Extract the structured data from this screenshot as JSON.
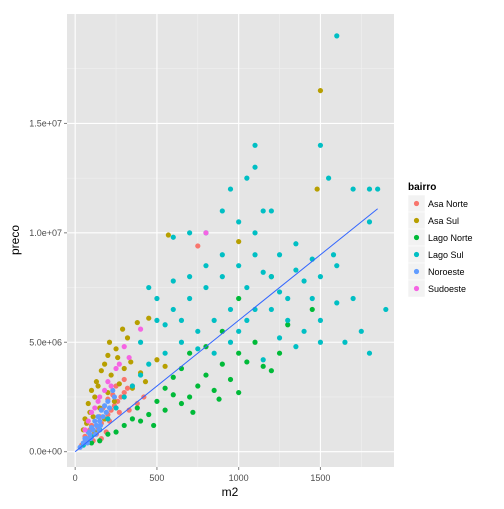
{
  "chart_data": {
    "type": "scatter",
    "title": "",
    "xlabel": "m2",
    "ylabel": "preco",
    "xlim": [
      -50,
      1950
    ],
    "ylim": [
      -700000,
      20000000
    ],
    "x_ticks": [
      {
        "value": 0,
        "label": "0"
      },
      {
        "value": 500,
        "label": "500"
      },
      {
        "value": 1000,
        "label": "1000"
      },
      {
        "value": 1500,
        "label": "1500"
      }
    ],
    "y_ticks": [
      {
        "value": 0,
        "label": "0.0e+00"
      },
      {
        "value": 5000000,
        "label": "5.0e+06"
      },
      {
        "value": 10000000,
        "label": "1.0e+07"
      },
      {
        "value": 15000000,
        "label": "1.5e+07"
      }
    ],
    "grid": true,
    "legend": {
      "title": "bairro",
      "position": "right",
      "entries": [
        {
          "label": "Asa Norte",
          "color": "#F8766D"
        },
        {
          "label": "Asa Sul",
          "color": "#B79F00"
        },
        {
          "label": "Lago Norte",
          "color": "#00BA38"
        },
        {
          "label": "Lago Sul",
          "color": "#00BFC4"
        },
        {
          "label": "Noroeste",
          "color": "#619CFF"
        },
        {
          "label": "Sudoeste",
          "color": "#F564E3"
        }
      ]
    },
    "trend_line": {
      "color": "#3366FF",
      "x": [
        0,
        1850
      ],
      "y": [
        0,
        11100000
      ]
    },
    "series": [
      {
        "name": "Asa Norte",
        "color": "#F8766D",
        "points": [
          [
            750,
            9400000
          ],
          [
            40,
            300000
          ],
          [
            60,
            450000
          ],
          [
            80,
            600000
          ],
          [
            100,
            750000
          ],
          [
            120,
            900000
          ],
          [
            140,
            1100000
          ],
          [
            160,
            1300000
          ],
          [
            180,
            1500000
          ],
          [
            200,
            1700000
          ],
          [
            220,
            1900000
          ],
          [
            240,
            2100000
          ],
          [
            260,
            2300000
          ],
          [
            280,
            2500000
          ],
          [
            300,
            2700000
          ],
          [
            320,
            2900000
          ],
          [
            150,
            1600000
          ],
          [
            200,
            2400000
          ],
          [
            250,
            3000000
          ],
          [
            100,
            1200000
          ],
          [
            130,
            800000
          ],
          [
            170,
            2000000
          ],
          [
            210,
            1400000
          ],
          [
            230,
            2600000
          ],
          [
            270,
            1800000
          ],
          [
            190,
            900000
          ],
          [
            90,
            1000000
          ],
          [
            110,
            500000
          ],
          [
            60,
            700000
          ],
          [
            300,
            3300000
          ],
          [
            350,
            3000000
          ],
          [
            380,
            2200000
          ],
          [
            330,
            1900000
          ],
          [
            420,
            2500000
          ],
          [
            160,
            600000
          ]
        ]
      },
      {
        "name": "Asa Sul",
        "color": "#B79F00",
        "points": [
          [
            1500,
            16500000
          ],
          [
            1480,
            12000000
          ],
          [
            1000,
            9600000
          ],
          [
            570,
            9900000
          ],
          [
            450,
            6100000
          ],
          [
            380,
            5900000
          ],
          [
            290,
            5600000
          ],
          [
            250,
            4700000
          ],
          [
            200,
            4400000
          ],
          [
            160,
            3700000
          ],
          [
            130,
            3200000
          ],
          [
            100,
            2800000
          ],
          [
            80,
            2200000
          ],
          [
            60,
            1500000
          ],
          [
            50,
            1000000
          ],
          [
            70,
            1300000
          ],
          [
            90,
            1800000
          ],
          [
            120,
            2500000
          ],
          [
            140,
            3000000
          ],
          [
            180,
            4000000
          ],
          [
            220,
            3500000
          ],
          [
            260,
            4300000
          ],
          [
            300,
            3800000
          ],
          [
            340,
            4100000
          ],
          [
            400,
            3600000
          ],
          [
            150,
            2000000
          ],
          [
            110,
            1600000
          ],
          [
            200,
            2700000
          ],
          [
            240,
            2300000
          ],
          [
            500,
            4200000
          ],
          [
            550,
            3900000
          ],
          [
            350,
            2900000
          ],
          [
            430,
            3200000
          ],
          [
            180,
            1500000
          ],
          [
            120,
            900000
          ],
          [
            270,
            3100000
          ],
          [
            320,
            5200000
          ],
          [
            210,
            5000000
          ]
        ]
      },
      {
        "name": "Lago Norte",
        "color": "#00BA38",
        "points": [
          [
            1000,
            7000000
          ],
          [
            1200,
            8000000
          ],
          [
            900,
            5500000
          ],
          [
            800,
            4800000
          ],
          [
            1100,
            5000000
          ],
          [
            1300,
            5800000
          ],
          [
            1450,
            6500000
          ],
          [
            1200,
            3700000
          ],
          [
            1050,
            4100000
          ],
          [
            950,
            3300000
          ],
          [
            850,
            2800000
          ],
          [
            750,
            3000000
          ],
          [
            700,
            2500000
          ],
          [
            650,
            2200000
          ],
          [
            600,
            2600000
          ],
          [
            550,
            1900000
          ],
          [
            500,
            2300000
          ],
          [
            450,
            1700000
          ],
          [
            400,
            1400000
          ],
          [
            350,
            1500000
          ],
          [
            300,
            1200000
          ],
          [
            250,
            900000
          ],
          [
            200,
            800000
          ],
          [
            150,
            500000
          ],
          [
            100,
            400000
          ],
          [
            700,
            4500000
          ],
          [
            800,
            3500000
          ],
          [
            900,
            4000000
          ],
          [
            1000,
            4500000
          ],
          [
            600,
            3400000
          ],
          [
            1150,
            3900000
          ],
          [
            1000,
            2700000
          ],
          [
            650,
            3800000
          ],
          [
            550,
            2900000
          ],
          [
            1250,
            4500000
          ],
          [
            880,
            2400000
          ],
          [
            480,
            1200000
          ],
          [
            380,
            2000000
          ],
          [
            720,
            1800000
          ]
        ]
      },
      {
        "name": "Lago Sul",
        "color": "#00BFC4",
        "points": [
          [
            1600,
            19000000
          ],
          [
            1800,
            12000000
          ],
          [
            1850,
            12000000
          ],
          [
            1700,
            12000000
          ],
          [
            1550,
            12500000
          ],
          [
            1500,
            14000000
          ],
          [
            1580,
            9000000
          ],
          [
            1800,
            10500000
          ],
          [
            1600,
            8500000
          ],
          [
            1500,
            8000000
          ],
          [
            1400,
            7800000
          ],
          [
            1350,
            9500000
          ],
          [
            1450,
            8800000
          ],
          [
            1250,
            9000000
          ],
          [
            1300,
            7000000
          ],
          [
            1100,
            14000000
          ],
          [
            1100,
            13000000
          ],
          [
            1050,
            12500000
          ],
          [
            1200,
            11000000
          ],
          [
            1150,
            11000000
          ],
          [
            1100,
            10000000
          ],
          [
            1000,
            10500000
          ],
          [
            950,
            12000000
          ],
          [
            900,
            11000000
          ],
          [
            800,
            10000000
          ],
          [
            700,
            10000000
          ],
          [
            600,
            9800000
          ],
          [
            1100,
            9000000
          ],
          [
            1000,
            8500000
          ],
          [
            900,
            8000000
          ],
          [
            800,
            7500000
          ],
          [
            700,
            7000000
          ],
          [
            600,
            6500000
          ],
          [
            500,
            6000000
          ],
          [
            1200,
            8000000
          ],
          [
            1050,
            7500000
          ],
          [
            950,
            6500000
          ],
          [
            850,
            6000000
          ],
          [
            750,
            5500000
          ],
          [
            650,
            5000000
          ],
          [
            550,
            4500000
          ],
          [
            450,
            4000000
          ],
          [
            400,
            3500000
          ],
          [
            350,
            3000000
          ],
          [
            300,
            2500000
          ],
          [
            250,
            2000000
          ],
          [
            200,
            1500000
          ],
          [
            150,
            1000000
          ],
          [
            100,
            700000
          ],
          [
            50,
            300000
          ],
          [
            1300,
            6000000
          ],
          [
            1200,
            6500000
          ],
          [
            1400,
            5500000
          ],
          [
            1500,
            6000000
          ],
          [
            1650,
            5000000
          ],
          [
            1700,
            7000000
          ],
          [
            1750,
            5500000
          ],
          [
            1900,
            6500000
          ],
          [
            900,
            9000000
          ],
          [
            1000,
            5500000
          ],
          [
            1100,
            6500000
          ],
          [
            1250,
            5200000
          ],
          [
            1350,
            4800000
          ],
          [
            1500,
            5000000
          ],
          [
            1800,
            4500000
          ],
          [
            800,
            8500000
          ],
          [
            700,
            8000000
          ],
          [
            1150,
            4200000
          ],
          [
            1050,
            6000000
          ],
          [
            450,
            7500000
          ],
          [
            500,
            7000000
          ],
          [
            600,
            7800000
          ],
          [
            550,
            5800000
          ],
          [
            650,
            6000000
          ],
          [
            750,
            4700000
          ],
          [
            850,
            4500000
          ],
          [
            950,
            5000000
          ],
          [
            400,
            5000000
          ],
          [
            1450,
            7000000
          ],
          [
            1600,
            6800000
          ],
          [
            1350,
            8300000
          ],
          [
            1250,
            7300000
          ],
          [
            1150,
            8200000
          ]
        ]
      },
      {
        "name": "Noroeste",
        "color": "#619CFF",
        "points": [
          [
            30,
            200000
          ],
          [
            50,
            400000
          ],
          [
            70,
            600000
          ],
          [
            90,
            800000
          ],
          [
            110,
            1000000
          ],
          [
            130,
            1200000
          ],
          [
            150,
            1400000
          ],
          [
            170,
            1600000
          ],
          [
            190,
            1800000
          ],
          [
            210,
            2000000
          ],
          [
            80,
            900000
          ],
          [
            120,
            1400000
          ],
          [
            160,
            1900000
          ],
          [
            100,
            1100000
          ],
          [
            140,
            1600000
          ],
          [
            180,
            2100000
          ],
          [
            60,
            600000
          ],
          [
            200,
            2300000
          ],
          [
            240,
            2500000
          ],
          [
            75,
            400000
          ],
          [
            95,
            600000
          ],
          [
            125,
            800000
          ],
          [
            145,
            1000000
          ],
          [
            230,
            2800000
          ],
          [
            155,
            1200000
          ]
        ]
      },
      {
        "name": "Sudoeste",
        "color": "#F564E3",
        "points": [
          [
            800,
            10000000
          ],
          [
            400,
            5600000
          ],
          [
            300,
            4800000
          ],
          [
            250,
            3800000
          ],
          [
            200,
            3200000
          ],
          [
            150,
            2500000
          ],
          [
            100,
            1800000
          ],
          [
            80,
            1400000
          ],
          [
            120,
            2000000
          ],
          [
            180,
            2800000
          ],
          [
            220,
            3000000
          ],
          [
            270,
            4000000
          ],
          [
            330,
            4300000
          ],
          [
            60,
            1000000
          ],
          [
            140,
            2300000
          ]
        ]
      }
    ]
  }
}
